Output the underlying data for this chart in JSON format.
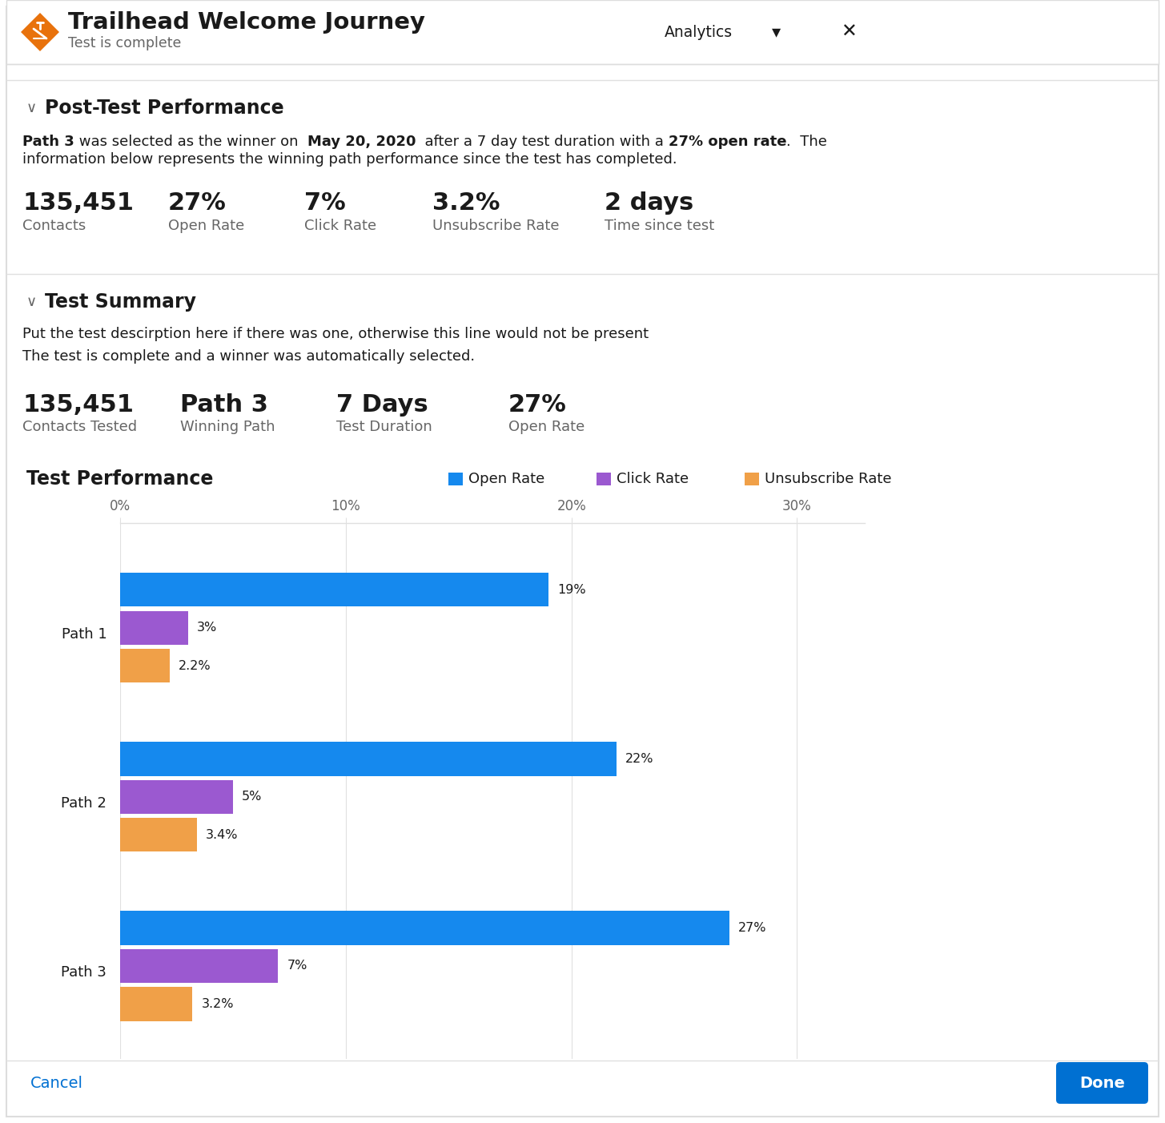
{
  "title": "Trailhead Welcome Journey",
  "subtitle": "Test is complete",
  "analytics_label": "Analytics",
  "header_bg": "#f8f8f8",
  "border_color": "#dddddd",
  "icon_color": "#e8720c",
  "section1_title": "Post-Test Performance",
  "winner_line1_plain": "Path 3 was selected as the winner on   May 20, 2020   after a 7 day test duration with a 27% open rate.  The",
  "winner_line2": "information below represents the winning path performance since the test has completed.",
  "post_test_stats": [
    {
      "value": "135,451",
      "label": "Contacts"
    },
    {
      "value": "27%",
      "label": "Open Rate"
    },
    {
      "value": "7%",
      "label": "Click Rate"
    },
    {
      "value": "3.2%",
      "label": "Unsubscribe Rate"
    },
    {
      "value": "2 days",
      "label": "Time since test"
    }
  ],
  "section2_title": "Test Summary",
  "description1": "Put the test descirption here if there was one, otherwise this line would not be present",
  "description2": "The test is complete and a winner was automatically selected.",
  "test_summary_stats": [
    {
      "value": "135,451",
      "label": "Contacts Tested"
    },
    {
      "value": "Path 3",
      "label": "Winning Path"
    },
    {
      "value": "7 Days",
      "label": "Test Duration"
    },
    {
      "value": "27%",
      "label": "Open Rate"
    }
  ],
  "chart_title": "Test Performance",
  "legend": [
    {
      "label": "Open Rate",
      "color": "#1589ee"
    },
    {
      "label": "Click Rate",
      "color": "#9b59d0"
    },
    {
      "label": "Unsubscribe Rate",
      "color": "#f0a048"
    }
  ],
  "paths": [
    "Path 1",
    "Path 2",
    "Path 3"
  ],
  "open_rates": [
    19,
    22,
    27
  ],
  "click_rates": [
    3,
    5,
    7
  ],
  "unsub_rates": [
    2.2,
    3.4,
    3.2
  ],
  "open_rate_labels": [
    "19%",
    "22%",
    "27%"
  ],
  "click_rate_labels": [
    "3%",
    "5%",
    "7%"
  ],
  "unsub_rate_labels": [
    "2.2%",
    "3.4%",
    "3.2%"
  ],
  "x_ticks": [
    0,
    10,
    20,
    30
  ],
  "x_tick_labels": [
    "0%",
    "10%",
    "20%",
    "30%"
  ],
  "xlim_max": 33,
  "bar_color_open": "#1589ee",
  "bar_color_click": "#9b59d0",
  "bar_color_unsub": "#f0a048",
  "cancel_button_text": "Cancel",
  "done_button_text": "Done",
  "done_button_color": "#0070d2",
  "done_button_text_color": "#ffffff",
  "bg_color": "#ffffff",
  "text_color_dark": "#1a1a1a",
  "text_color_gray": "#666666",
  "text_color_blue": "#0070d2",
  "divider_color": "#e0e0e0",
  "winner_parts": [
    {
      "text": "Path 3",
      "bold": true
    },
    {
      "text": " was selected as the winner on  ",
      "bold": false
    },
    {
      "text": "May 20, 2020",
      "bold": true
    },
    {
      "text": "  after a 7 day test duration with a ",
      "bold": false
    },
    {
      "text": "27% open rate",
      "bold": true
    },
    {
      "text": ".  The",
      "bold": false
    }
  ]
}
